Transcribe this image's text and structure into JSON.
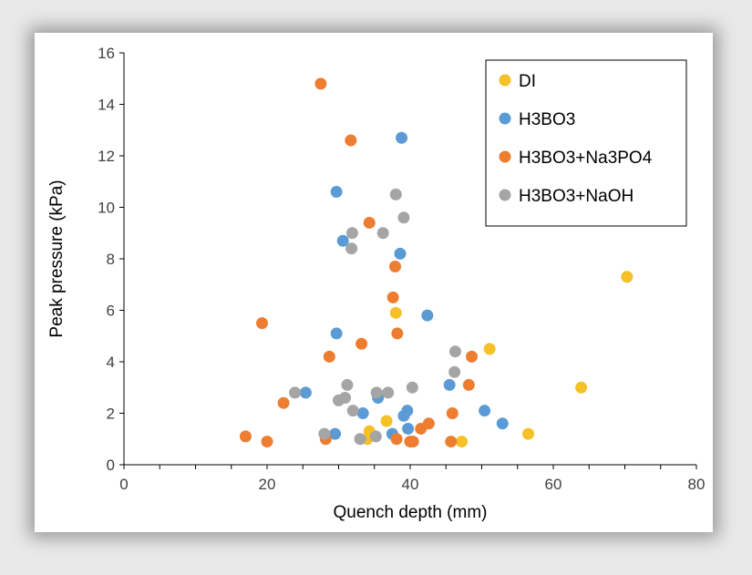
{
  "chart_data": {
    "type": "scatter",
    "title": "",
    "xlabel": "Quench depth (mm)",
    "ylabel": "Peak pressure (kPa)",
    "xlim": [
      0,
      80
    ],
    "ylim": [
      0,
      16
    ],
    "xticks": [
      0,
      20,
      40,
      60,
      80
    ],
    "yticks": [
      0,
      2,
      4,
      6,
      8,
      10,
      12,
      14,
      16
    ],
    "grid": false,
    "legend_position": "top-right",
    "series": [
      {
        "name": "DI",
        "color": "#f5c028",
        "points": [
          [
            70.3,
            7.3
          ],
          [
            63.9,
            3.0
          ],
          [
            56.5,
            1.2
          ],
          [
            51.1,
            4.5
          ],
          [
            47.2,
            0.9
          ],
          [
            38.0,
            5.9
          ],
          [
            36.7,
            1.7
          ],
          [
            34.3,
            1.3
          ],
          [
            34.0,
            1.0
          ]
        ]
      },
      {
        "name": "H3BO3",
        "color": "#5b9bd5",
        "points": [
          [
            38.8,
            12.7
          ],
          [
            29.7,
            10.6
          ],
          [
            30.6,
            8.7
          ],
          [
            38.6,
            8.2
          ],
          [
            42.4,
            5.8
          ],
          [
            29.7,
            5.1
          ],
          [
            25.4,
            2.8
          ],
          [
            33.4,
            2.0
          ],
          [
            35.5,
            2.6
          ],
          [
            39.6,
            2.1
          ],
          [
            45.5,
            3.1
          ],
          [
            50.4,
            2.1
          ],
          [
            52.9,
            1.6
          ],
          [
            39.1,
            1.9
          ],
          [
            29.5,
            1.2
          ],
          [
            37.5,
            1.2
          ],
          [
            39.7,
            1.4
          ]
        ]
      },
      {
        "name": "H3BO3+Na3PO4",
        "color": "#ed7d31",
        "points": [
          [
            27.5,
            14.8
          ],
          [
            31.7,
            12.6
          ],
          [
            34.3,
            9.4
          ],
          [
            37.9,
            7.7
          ],
          [
            37.6,
            6.5
          ],
          [
            19.3,
            5.5
          ],
          [
            38.2,
            5.1
          ],
          [
            33.2,
            4.7
          ],
          [
            28.7,
            4.2
          ],
          [
            48.6,
            4.2
          ],
          [
            22.3,
            2.4
          ],
          [
            48.2,
            3.1
          ],
          [
            45.9,
            2.0
          ],
          [
            42.6,
            1.6
          ],
          [
            41.5,
            1.4
          ],
          [
            17.0,
            1.1
          ],
          [
            20.0,
            0.9
          ],
          [
            28.2,
            1.0
          ],
          [
            38.1,
            1.0
          ],
          [
            40.0,
            0.9
          ],
          [
            40.4,
            0.9
          ],
          [
            45.7,
            0.9
          ]
        ]
      },
      {
        "name": "H3BO3+NaOH",
        "color": "#a5a5a5",
        "points": [
          [
            38.0,
            10.5
          ],
          [
            39.1,
            9.6
          ],
          [
            31.9,
            9.0
          ],
          [
            36.2,
            9.0
          ],
          [
            31.8,
            8.4
          ],
          [
            46.3,
            4.4
          ],
          [
            46.2,
            3.6
          ],
          [
            31.2,
            3.1
          ],
          [
            40.3,
            3.0
          ],
          [
            23.9,
            2.8
          ],
          [
            35.3,
            2.8
          ],
          [
            36.9,
            2.8
          ],
          [
            30.9,
            2.6
          ],
          [
            30.0,
            2.5
          ],
          [
            32.0,
            2.1
          ],
          [
            28.0,
            1.2
          ],
          [
            33.0,
            1.0
          ],
          [
            35.2,
            1.1
          ]
        ]
      }
    ]
  }
}
